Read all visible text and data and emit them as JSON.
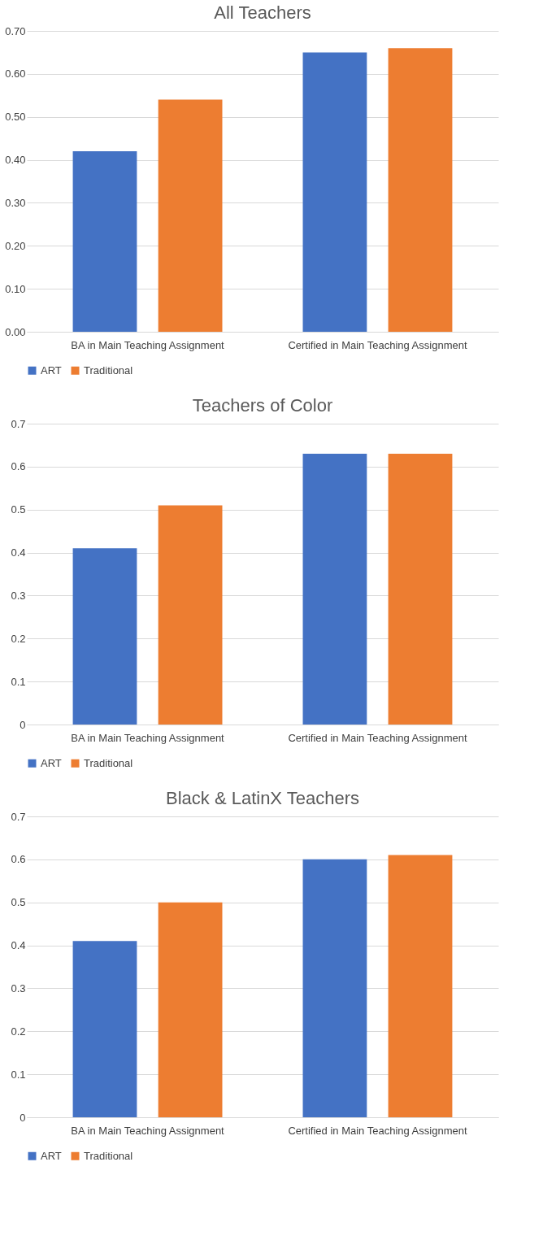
{
  "chart_data": [
    {
      "type": "bar",
      "title": "All Teachers",
      "categories": [
        "BA in Main Teaching Assignment",
        "Certified in Main Teaching Assignment"
      ],
      "series": [
        {
          "name": "ART",
          "color": "#4472c4",
          "values": [
            0.42,
            0.65
          ]
        },
        {
          "name": "Traditional",
          "color": "#ed7d31",
          "values": [
            0.54,
            0.66
          ]
        }
      ],
      "ylim": [
        0,
        0.7
      ],
      "yticks": [
        {
          "value": 0,
          "label": "0.00"
        },
        {
          "value": 0.1,
          "label": "0.10"
        },
        {
          "value": 0.2,
          "label": "0.20"
        },
        {
          "value": 0.3,
          "label": "0.30"
        },
        {
          "value": 0.4,
          "label": "0.40"
        },
        {
          "value": 0.5,
          "label": "0.50"
        },
        {
          "value": 0.6,
          "label": "0.60"
        },
        {
          "value": 0.7,
          "label": "0.70"
        }
      ],
      "grid": "y",
      "legend": "bottom"
    },
    {
      "type": "bar",
      "title": "Teachers of Color",
      "categories": [
        "BA in Main Teaching Assignment",
        "Certified in Main Teaching Assignment"
      ],
      "series": [
        {
          "name": "ART",
          "color": "#4472c4",
          "values": [
            0.41,
            0.63
          ]
        },
        {
          "name": "Traditional",
          "color": "#ed7d31",
          "values": [
            0.51,
            0.63
          ]
        }
      ],
      "ylim": [
        0,
        0.7
      ],
      "yticks": [
        0,
        0.1,
        0.2,
        0.3,
        0.4,
        0.5,
        0.6,
        0.7
      ],
      "grid": "y",
      "legend": "bottom"
    },
    {
      "type": "bar",
      "title": "Black & LatinX Teachers",
      "categories": [
        "BA in Main Teaching Assignment",
        "Certified in Main Teaching Assignment"
      ],
      "series": [
        {
          "name": "ART",
          "color": "#4472c4",
          "values": [
            0.41,
            0.6
          ]
        },
        {
          "name": "Traditional",
          "color": "#ed7d31",
          "values": [
            0.5,
            0.61
          ]
        }
      ],
      "ylim": [
        0,
        0.7
      ],
      "yticks": [
        0,
        0.1,
        0.2,
        0.3,
        0.4,
        0.5,
        0.6,
        0.7
      ],
      "grid": "y",
      "legend": "bottom"
    }
  ]
}
